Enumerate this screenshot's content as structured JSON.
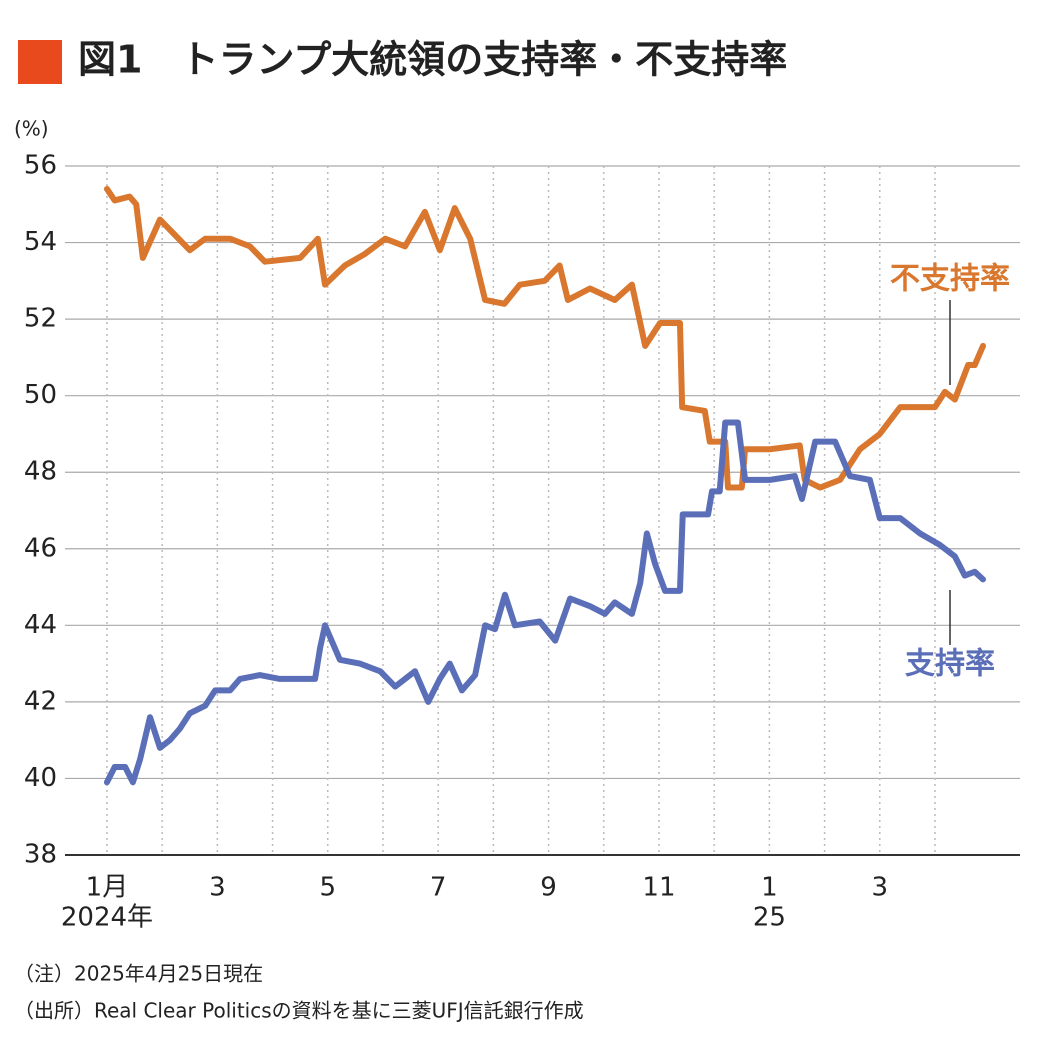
{
  "chart_data": {
    "type": "line",
    "title": "図1　トランプ大統領の支持率・不支持率",
    "y_unit": "(%)",
    "xlim": [
      -0.76,
      16.54
    ],
    "ylim": [
      38,
      56
    ],
    "yticks": [
      38,
      40,
      42,
      44,
      46,
      48,
      50,
      52,
      54,
      56
    ],
    "xticks": [
      {
        "value": 0,
        "label": "1月"
      },
      {
        "value": 2,
        "label": "3"
      },
      {
        "value": 4,
        "label": "5"
      },
      {
        "value": 6,
        "label": "7"
      },
      {
        "value": 8,
        "label": "9"
      },
      {
        "value": 10,
        "label": "11"
      },
      {
        "value": 12,
        "label": "1"
      },
      {
        "value": 14,
        "label": "3"
      }
    ],
    "x_year_labels": [
      {
        "value": 0,
        "label": "2024年"
      },
      {
        "value": 12,
        "label": "25"
      }
    ],
    "xgrid": [
      0,
      1,
      2,
      3,
      4,
      5,
      6,
      7,
      8,
      9,
      10,
      11,
      12,
      13,
      14,
      15
    ],
    "grid": true,
    "series": [
      {
        "name": "不支持率",
        "color": "#d9772e",
        "x": [
          0,
          0.14,
          0.41,
          0.53,
          0.65,
          0.96,
          1.23,
          1.5,
          1.78,
          2.23,
          2.59,
          2.86,
          3.5,
          3.82,
          3.95,
          4.31,
          4.67,
          5.04,
          5.4,
          5.76,
          6.03,
          6.3,
          6.58,
          6.85,
          7.2,
          7.48,
          7.93,
          8.2,
          8.35,
          8.75,
          9.2,
          9.51,
          9.75,
          10.02,
          10.38,
          10.42,
          10.83,
          10.92,
          11.2,
          11.25,
          11.5,
          11.56,
          12.01,
          12.55,
          12.64,
          12.92,
          13.28,
          13.64,
          14.0,
          14.37,
          15.0,
          15.18,
          15.36,
          15.6,
          15.72,
          15.87
        ],
        "values": [
          55.4,
          55.1,
          55.2,
          55.0,
          53.6,
          54.6,
          54.2,
          53.8,
          54.1,
          54.1,
          53.9,
          53.5,
          53.6,
          54.1,
          52.9,
          53.4,
          53.7,
          54.1,
          53.9,
          54.8,
          53.8,
          54.9,
          54.1,
          52.5,
          52.4,
          52.9,
          53.0,
          53.4,
          52.5,
          52.8,
          52.5,
          52.9,
          51.3,
          51.9,
          51.9,
          49.7,
          49.6,
          48.8,
          48.8,
          47.6,
          47.6,
          48.6,
          48.6,
          48.7,
          47.8,
          47.6,
          47.8,
          48.6,
          49.0,
          49.7,
          49.7,
          50.1,
          49.9,
          50.8,
          50.8,
          51.3
        ]
      },
      {
        "name": "支持率",
        "color": "#5a6fb8",
        "x": [
          0,
          0.14,
          0.33,
          0.47,
          0.6,
          0.78,
          0.96,
          1.14,
          1.32,
          1.5,
          1.78,
          1.96,
          2.23,
          2.41,
          2.77,
          3.13,
          3.77,
          3.86,
          3.95,
          4.22,
          4.58,
          4.95,
          5.22,
          5.58,
          5.82,
          6.03,
          6.21,
          6.43,
          6.67,
          6.85,
          7.03,
          7.21,
          7.39,
          7.84,
          8.12,
          8.39,
          8.75,
          9.02,
          9.2,
          9.51,
          9.66,
          9.78,
          9.93,
          10.11,
          10.38,
          10.43,
          10.89,
          10.96,
          11.1,
          11.2,
          11.43,
          11.56,
          12.01,
          12.46,
          12.59,
          12.83,
          13.19,
          13.46,
          13.82,
          14.0,
          14.37,
          14.73,
          15.09,
          15.36,
          15.54,
          15.72,
          15.87
        ],
        "values": [
          39.9,
          40.3,
          40.3,
          39.9,
          40.5,
          41.6,
          40.8,
          41.0,
          41.3,
          41.7,
          41.9,
          42.3,
          42.3,
          42.6,
          42.7,
          42.6,
          42.6,
          43.4,
          44.0,
          43.1,
          43.0,
          42.8,
          42.4,
          42.8,
          42.0,
          42.6,
          43.0,
          42.3,
          42.7,
          44.0,
          43.9,
          44.8,
          44.0,
          44.1,
          43.6,
          44.7,
          44.5,
          44.3,
          44.6,
          44.3,
          45.1,
          46.4,
          45.6,
          44.9,
          44.9,
          46.9,
          46.9,
          47.5,
          47.5,
          49.3,
          49.3,
          47.8,
          47.8,
          47.9,
          47.3,
          48.8,
          48.8,
          47.9,
          47.8,
          46.8,
          46.8,
          46.4,
          46.1,
          45.8,
          45.3,
          45.4,
          45.2
        ]
      }
    ],
    "notes": [
      "（注）2025年4月25日現在",
      "（出所）Real Clear Politicsの資料を基に三菱UFJ信託銀行作成"
    ]
  }
}
